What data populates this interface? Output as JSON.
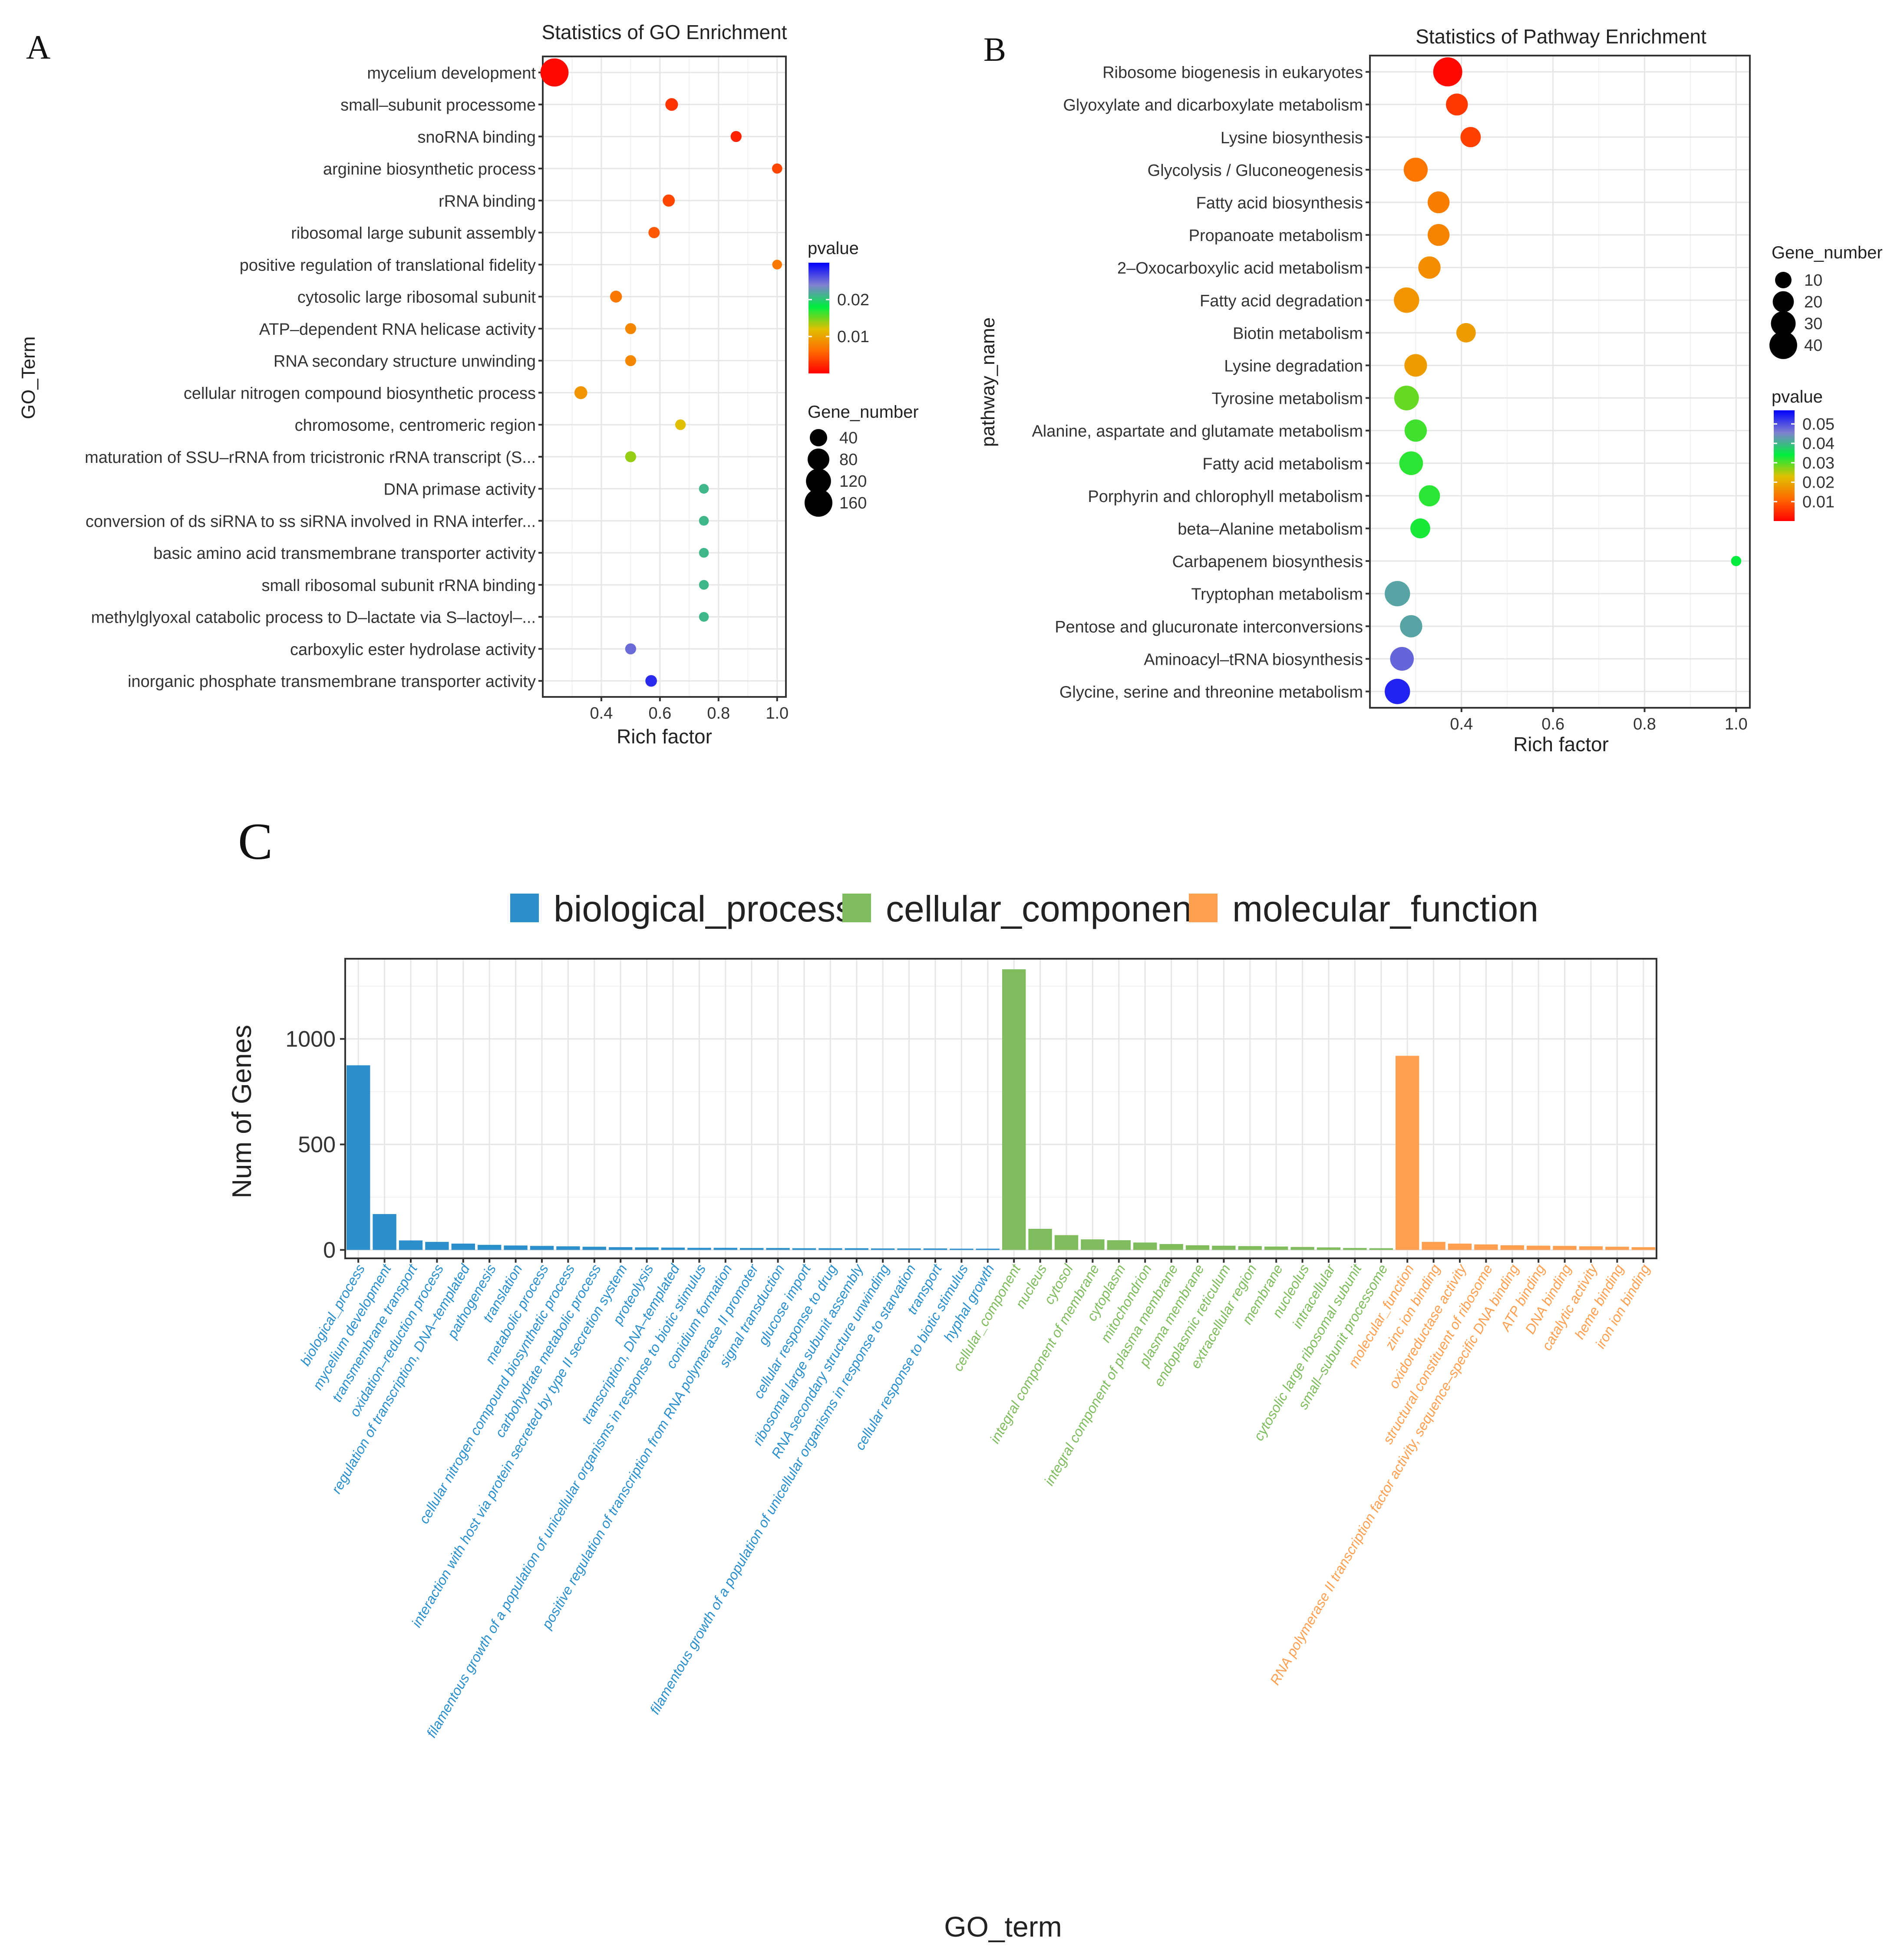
{
  "panels": {
    "a": {
      "letter": "A"
    },
    "b": {
      "letter": "B"
    },
    "c": {
      "letter": "C"
    }
  },
  "colors": {
    "pvalue_gradient": [
      "#ff0000",
      "#ff6a00",
      "#e0c000",
      "#00ee40",
      "#8080d0",
      "#0000ff"
    ],
    "biological_process": "#2b8fcb",
    "cellular_component": "#7fbc5e",
    "molecular_function": "#ff9f4f"
  },
  "chart_data": [
    {
      "type": "scatter",
      "title": "Statistics of GO Enrichment",
      "xlabel": "Rich factor",
      "ylabel": "GO_Term",
      "xlim": [
        0.2,
        1.03
      ],
      "xticks": [
        "0.4",
        "0.6",
        "0.8",
        "1.0"
      ],
      "xtick_values": [
        0.4,
        0.6,
        0.8,
        1.0
      ],
      "grid": true,
      "legend_position": "right",
      "color_legend": {
        "title": "pvalue",
        "ticks": [
          "0.02",
          "0.01"
        ],
        "tick_values": [
          0.02,
          0.01
        ],
        "range": [
          0,
          0.03
        ]
      },
      "size_legend": {
        "title": "Gene_number",
        "labels": [
          "40",
          "80",
          "120",
          "160"
        ],
        "values": [
          40,
          80,
          120,
          160
        ]
      },
      "categories": [
        "mycelium development",
        "small–subunit processome",
        "snoRNA binding",
        "arginine biosynthetic process",
        "rRNA binding",
        "ribosomal large subunit assembly",
        "positive regulation of translational fidelity",
        "cytosolic large ribosomal subunit",
        "ATP–dependent RNA helicase activity",
        "RNA secondary structure unwinding",
        "cellular nitrogen compound biosynthetic process",
        "chromosome, centromeric region",
        "maturation of SSU–rRNA from tricistronic rRNA transcript (S...",
        "DNA primase activity",
        "conversion of ds siRNA to ss siRNA involved in RNA interfer...",
        "basic amino acid transmembrane transporter activity",
        "small ribosomal subunit rRNA binding",
        "methylglyoxal catabolic process to D–lactate via S–lactoyl–...",
        "carboxylic ester hydrolase activity",
        "inorganic phosphate transmembrane transporter activity"
      ],
      "points": [
        {
          "x": 0.24,
          "pvalue": 0.0005,
          "gene_number": 165
        },
        {
          "x": 0.64,
          "pvalue": 0.003,
          "gene_number": 12
        },
        {
          "x": 0.86,
          "pvalue": 0.002,
          "gene_number": 6
        },
        {
          "x": 1.0,
          "pvalue": 0.004,
          "gene_number": 4
        },
        {
          "x": 0.63,
          "pvalue": 0.004,
          "gene_number": 10
        },
        {
          "x": 0.58,
          "pvalue": 0.005,
          "gene_number": 7
        },
        {
          "x": 1.0,
          "pvalue": 0.007,
          "gene_number": 3
        },
        {
          "x": 0.45,
          "pvalue": 0.007,
          "gene_number": 9
        },
        {
          "x": 0.5,
          "pvalue": 0.008,
          "gene_number": 6
        },
        {
          "x": 0.5,
          "pvalue": 0.008,
          "gene_number": 6
        },
        {
          "x": 0.33,
          "pvalue": 0.009,
          "gene_number": 13
        },
        {
          "x": 0.67,
          "pvalue": 0.012,
          "gene_number": 5
        },
        {
          "x": 0.5,
          "pvalue": 0.014,
          "gene_number": 6
        },
        {
          "x": 0.75,
          "pvalue": 0.021,
          "gene_number": 3
        },
        {
          "x": 0.75,
          "pvalue": 0.021,
          "gene_number": 3
        },
        {
          "x": 0.75,
          "pvalue": 0.021,
          "gene_number": 3
        },
        {
          "x": 0.75,
          "pvalue": 0.021,
          "gene_number": 3
        },
        {
          "x": 0.75,
          "pvalue": 0.021,
          "gene_number": 3
        },
        {
          "x": 0.5,
          "pvalue": 0.025,
          "gene_number": 6
        },
        {
          "x": 0.57,
          "pvalue": 0.028,
          "gene_number": 8
        }
      ]
    },
    {
      "type": "scatter",
      "title": "Statistics of Pathway Enrichment",
      "xlabel": "Rich factor",
      "ylabel": "pathway_name",
      "xlim": [
        0.2,
        1.03
      ],
      "xticks": [
        "0.4",
        "0.6",
        "0.8",
        "1.0"
      ],
      "xtick_values": [
        0.4,
        0.6,
        0.8,
        1.0
      ],
      "grid": true,
      "legend_position": "right",
      "color_legend": {
        "title": "pvalue",
        "ticks": [
          "0.05",
          "0.04",
          "0.03",
          "0.02",
          "0.01"
        ],
        "tick_values": [
          0.05,
          0.04,
          0.03,
          0.02,
          0.01
        ],
        "range": [
          0,
          0.057
        ]
      },
      "size_legend": {
        "title": "Gene_number",
        "labels": [
          "10",
          "20",
          "30",
          "40"
        ],
        "values": [
          10,
          20,
          30,
          40
        ]
      },
      "categories": [
        "Ribosome biogenesis in eukaryotes",
        "Glyoxylate and dicarboxylate metabolism",
        "Lysine biosynthesis",
        "Glycolysis / Gluconeogenesis",
        "Fatty acid biosynthesis",
        "Propanoate metabolism",
        "2–Oxocarboxylic acid metabolism",
        "Fatty acid degradation",
        "Biotin metabolism",
        "Lysine degradation",
        "Tyrosine metabolism",
        "Alanine, aspartate and glutamate metabolism",
        "Fatty acid metabolism",
        "Porphyrin and chlorophyll metabolism",
        "beta–Alanine metabolism",
        "Carbapenem biosynthesis",
        "Tryptophan metabolism",
        "Pentose and glucuronate interconversions",
        "Aminoacyl–tRNA biosynthesis",
        "Glycine, serine and threonine metabolism"
      ],
      "points": [
        {
          "x": 0.37,
          "pvalue": 0.001,
          "gene_number": 45
        },
        {
          "x": 0.39,
          "pvalue": 0.006,
          "gene_number": 22
        },
        {
          "x": 0.42,
          "pvalue": 0.007,
          "gene_number": 18
        },
        {
          "x": 0.3,
          "pvalue": 0.013,
          "gene_number": 28
        },
        {
          "x": 0.35,
          "pvalue": 0.014,
          "gene_number": 22
        },
        {
          "x": 0.35,
          "pvalue": 0.015,
          "gene_number": 22
        },
        {
          "x": 0.33,
          "pvalue": 0.016,
          "gene_number": 23
        },
        {
          "x": 0.28,
          "pvalue": 0.017,
          "gene_number": 32
        },
        {
          "x": 0.41,
          "pvalue": 0.018,
          "gene_number": 16
        },
        {
          "x": 0.3,
          "pvalue": 0.018,
          "gene_number": 24
        },
        {
          "x": 0.28,
          "pvalue": 0.029,
          "gene_number": 30
        },
        {
          "x": 0.3,
          "pvalue": 0.031,
          "gene_number": 23
        },
        {
          "x": 0.29,
          "pvalue": 0.032,
          "gene_number": 27
        },
        {
          "x": 0.33,
          "pvalue": 0.032,
          "gene_number": 20
        },
        {
          "x": 0.31,
          "pvalue": 0.033,
          "gene_number": 17
        },
        {
          "x": 1.0,
          "pvalue": 0.034,
          "gene_number": 2
        },
        {
          "x": 0.26,
          "pvalue": 0.042,
          "gene_number": 32
        },
        {
          "x": 0.29,
          "pvalue": 0.042,
          "gene_number": 23
        },
        {
          "x": 0.27,
          "pvalue": 0.048,
          "gene_number": 27
        },
        {
          "x": 0.26,
          "pvalue": 0.054,
          "gene_number": 32
        }
      ]
    },
    {
      "type": "bar",
      "xlabel": "GO_term",
      "ylabel": "Num of Genes",
      "ylim": [
        -40,
        1380
      ],
      "yticks": [
        "0",
        "500",
        "1000"
      ],
      "ytick_values": [
        0,
        500,
        1000
      ],
      "grid": true,
      "legend_position": "top",
      "series": [
        {
          "name": "biological_process",
          "categories": [
            "biological_process",
            "mycelium development",
            "transmembrane transport",
            "oxidation–reduction process",
            "regulation of transcription, DNA–templated",
            "pathogenesis",
            "translation",
            "metabolic process",
            "cellular nitrogen compound biosynthetic process",
            "carbohydrate metabolic process",
            "interaction with host via protein secreted by type II secretion system",
            "proteolysis",
            "transcription, DNA–templated",
            "filamentous growth of a population of unicellular organisms in response to biotic stimulus",
            "conidium formation",
            "positive regulation of transcription from RNA polymerase II promoter",
            "signal transduction",
            "glucose import",
            "cellular response to drug",
            "ribosomal large subunit assembly",
            "RNA secondary structure unwinding",
            "filamentous growth of a population of unicellular organisms in response to starvation",
            "transport",
            "cellular response to biotic stimulus",
            "hyphal growth"
          ],
          "values": [
            875,
            170,
            45,
            38,
            30,
            24,
            21,
            19,
            17,
            15,
            13,
            12,
            11,
            10,
            10,
            9,
            9,
            8,
            8,
            8,
            7,
            7,
            7,
            6,
            6
          ]
        },
        {
          "name": "cellular_component",
          "categories": [
            "cellular_component",
            "nucleus",
            "cytosol",
            "integral component of membrane",
            "cytoplasm",
            "mitochondrion",
            "integral component of plasma membrane",
            "plasma membrane",
            "endoplasmic reticulum",
            "extracellular region",
            "membrane",
            "nucleolus",
            "intracellular",
            "cytosolic large ribosomal subunit",
            "small–subunit processome"
          ],
          "values": [
            1330,
            100,
            70,
            50,
            46,
            35,
            28,
            22,
            20,
            18,
            16,
            14,
            12,
            9,
            8
          ]
        },
        {
          "name": "molecular_function",
          "categories": [
            "molecular_function",
            "zinc ion binding",
            "oxidoreductase activity",
            "structural constituent of ribosome",
            "RNA polymerase II transcription factor activity, sequence–specific DNA binding",
            "ATP binding",
            "DNA binding",
            "catalytic activity",
            "heme binding",
            "iron ion binding"
          ],
          "values": [
            920,
            38,
            30,
            26,
            22,
            20,
            19,
            17,
            15,
            13
          ]
        }
      ]
    }
  ]
}
